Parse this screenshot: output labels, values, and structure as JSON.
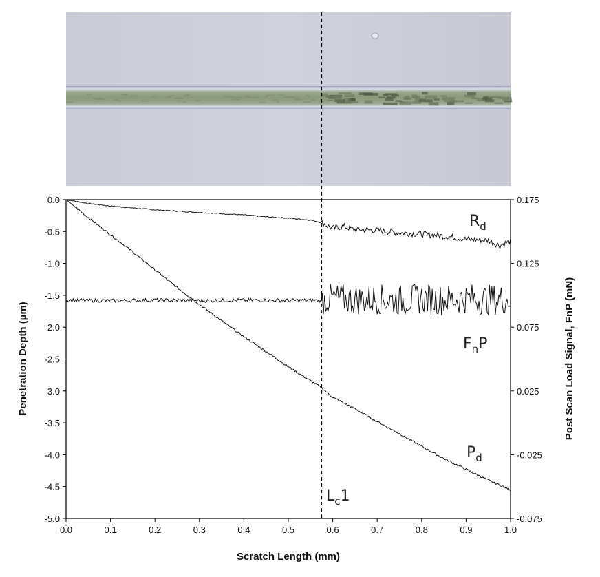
{
  "chart_data": {
    "type": "line",
    "xlabel": "Scratch Length (mm)",
    "ylabel_left": "Penetration Depth (µm)",
    "ylabel_right": "Post Scan Load Signal, FnP (mN)",
    "xlim": [
      0.0,
      1.0
    ],
    "ylim_left": [
      -5.0,
      0.0
    ],
    "ylim_right": [
      -0.075,
      0.175
    ],
    "x_ticks": [
      "0.0",
      "0.1",
      "0.2",
      "0.3",
      "0.4",
      "0.5",
      "0.6",
      "0.7",
      "0.8",
      "0.9",
      "1.0"
    ],
    "y_left_ticks": [
      "0.0",
      "-0.5",
      "-1.0",
      "-1.5",
      "-2.0",
      "-2.5",
      "-3.0",
      "-3.5",
      "-4.0",
      "-4.5",
      "-5.0"
    ],
    "y_right_ticks": [
      "0.175",
      "0.125",
      "0.075",
      "0.025",
      "-0.025",
      "-0.075"
    ],
    "grid": false,
    "critical_load": {
      "x": 0.575,
      "label_main": "L",
      "label_sub": "c",
      "label_tail": "1"
    },
    "series": [
      {
        "name": "Rd",
        "label_main": "R",
        "label_sub": "d",
        "axis": "left",
        "x": [
          0.0,
          0.05,
          0.1,
          0.15,
          0.2,
          0.25,
          0.3,
          0.35,
          0.4,
          0.45,
          0.5,
          0.55,
          0.575,
          0.6,
          0.625,
          0.65,
          0.7,
          0.75,
          0.8,
          0.85,
          0.9,
          0.95,
          0.975,
          1.0
        ],
        "values": [
          0.0,
          -0.06,
          -0.1,
          -0.13,
          -0.16,
          -0.18,
          -0.2,
          -0.22,
          -0.24,
          -0.27,
          -0.29,
          -0.32,
          -0.36,
          -0.45,
          -0.42,
          -0.47,
          -0.48,
          -0.52,
          -0.54,
          -0.57,
          -0.62,
          -0.64,
          -0.72,
          -0.65
        ]
      },
      {
        "name": "Pd",
        "label_main": "P",
        "label_sub": "d",
        "axis": "left",
        "x": [
          0.0,
          0.05,
          0.1,
          0.15,
          0.2,
          0.25,
          0.3,
          0.35,
          0.4,
          0.45,
          0.5,
          0.55,
          0.575,
          0.6,
          0.65,
          0.7,
          0.75,
          0.8,
          0.85,
          0.9,
          0.95,
          1.0
        ],
        "values": [
          0.0,
          -0.28,
          -0.55,
          -0.82,
          -1.1,
          -1.38,
          -1.64,
          -1.9,
          -2.15,
          -2.38,
          -2.62,
          -2.84,
          -2.95,
          -3.1,
          -3.28,
          -3.48,
          -3.67,
          -3.87,
          -4.06,
          -4.23,
          -4.4,
          -4.55
        ]
      },
      {
        "name": "FnP",
        "label_main": "F",
        "label_sub": "n",
        "label_tail": "P",
        "axis": "right",
        "x": [
          0.0,
          0.1,
          0.2,
          0.3,
          0.4,
          0.5,
          0.575,
          0.6,
          0.65,
          0.7,
          0.75,
          0.8,
          0.85,
          0.9,
          0.95,
          1.0
        ],
        "values": [
          0.0962,
          0.0958,
          0.0962,
          0.0958,
          0.0962,
          0.096,
          0.096,
          0.0975,
          0.0965,
          0.097,
          0.096,
          0.0975,
          0.0962,
          0.0975,
          0.0965,
          0.097
        ],
        "noise_amplitude_before": 0.0015,
        "noise_amplitude_after": 0.012
      }
    ]
  }
}
